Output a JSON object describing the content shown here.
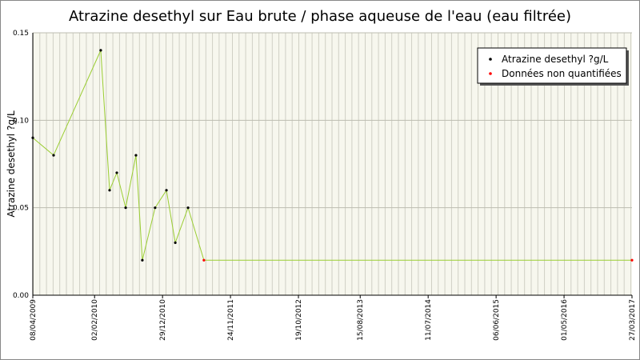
{
  "chart_data": {
    "type": "line",
    "title": "Atrazine desethyl sur Eau brute / phase aqueuse de l'eau (eau filtrée)",
    "ylabel": "Atrazine desethyl ?g/L",
    "x": [
      "2009-04-08",
      "2009-07-18",
      "2010-03-04",
      "2010-04-16",
      "2010-05-21",
      "2010-07-03",
      "2010-08-22",
      "2010-09-22",
      "2010-11-23",
      "2011-01-17",
      "2011-03-01",
      "2011-05-02",
      "2011-07-18",
      "2017-03-27"
    ],
    "values": [
      0.09,
      0.08,
      0.14,
      0.06,
      0.07,
      0.05,
      0.08,
      0.02,
      0.05,
      0.06,
      0.03,
      0.05,
      0.02,
      0.02
    ],
    "color": "#9acd32",
    "marker_colors": [
      "#000000",
      "#000000",
      "#000000",
      "#000000",
      "#000000",
      "#000000",
      "#000000",
      "#000000",
      "#000000",
      "#000000",
      "#000000",
      "#000000",
      "#ff0000",
      "#ff0000"
    ],
    "legend": [
      {
        "name": "Atrazine desethyl ?g/L",
        "color": "#000000"
      },
      {
        "name": "Données non quantifiées",
        "color": "#ff0000"
      }
    ],
    "legend_position": "upper right",
    "xlim": [
      "2009-04-08",
      "2017-03-27"
    ],
    "xticks": [
      {
        "value": "2009-04-08",
        "label": "08/04/2009"
      },
      {
        "value": "2010-02-02",
        "label": "02/02/2010"
      },
      {
        "value": "2010-12-29",
        "label": "29/12/2010"
      },
      {
        "value": "2011-11-24",
        "label": "24/11/2011"
      },
      {
        "value": "2012-10-19",
        "label": "19/10/2012"
      },
      {
        "value": "2013-08-15",
        "label": "15/08/2013"
      },
      {
        "value": "2014-07-11",
        "label": "11/07/2014"
      },
      {
        "value": "2015-06-06",
        "label": "06/06/2015"
      },
      {
        "value": "2016-05-01",
        "label": "01/05/2016"
      },
      {
        "value": "2017-03-27",
        "label": "27/03/2017"
      }
    ],
    "ylim": [
      0,
      0.15
    ],
    "yticks": [
      {
        "value": 0,
        "label": "0.00"
      },
      {
        "value": 0.05,
        "label": "0.05"
      },
      {
        "value": 0.1,
        "label": "0.10"
      },
      {
        "value": 0.15,
        "label": "0.15"
      }
    ],
    "grid": true
  }
}
